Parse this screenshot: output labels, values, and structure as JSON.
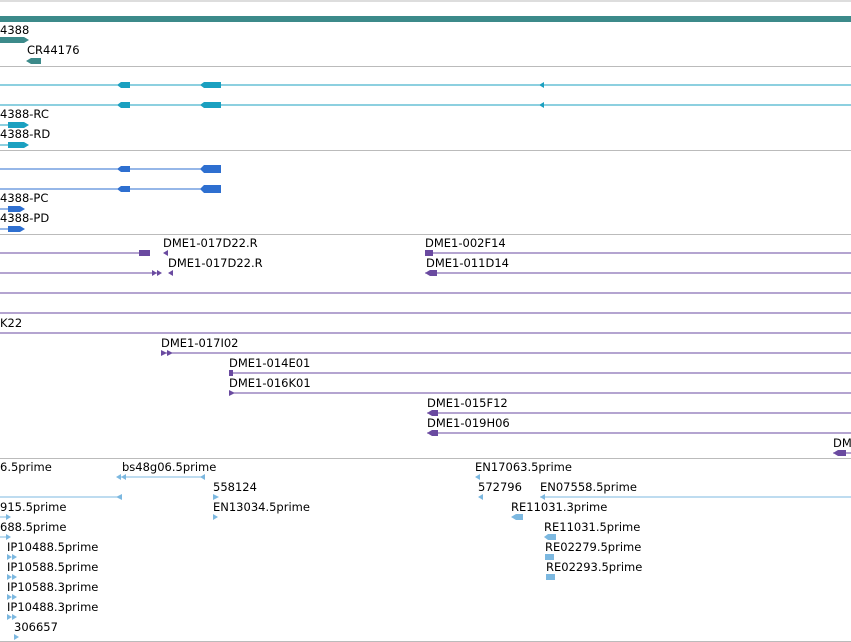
{
  "colors": {
    "gene": "#3c8a8a",
    "mrna": "#1ba0c0",
    "cds": "#2e6fd0",
    "clone": "#6a4aa0",
    "est": "#7cb8e0",
    "separator": "#bbbbbb"
  },
  "tracks": {
    "gene": {
      "features": [
        {
          "label": "4388"
        },
        {
          "label": "CR44176"
        }
      ]
    },
    "transcripts": {
      "features": [
        {
          "label": "4388-RC"
        },
        {
          "label": "4388-RD"
        }
      ]
    },
    "proteins": {
      "features": [
        {
          "label": "4388-PC"
        },
        {
          "label": "4388-PD"
        }
      ]
    },
    "clones_a": {
      "features": [
        {
          "label": "DME1-017D22.R"
        },
        {
          "label": "DME1-017D22.R"
        },
        {
          "label": "DME1-002F14"
        },
        {
          "label": "DME1-011D14"
        }
      ]
    },
    "clones_b": {
      "features": [
        {
          "label": "K22"
        },
        {
          "label": "DME1-017I02"
        },
        {
          "label": "DME1-014E01"
        },
        {
          "label": "DME1-016K01"
        },
        {
          "label": "DME1-015F12"
        },
        {
          "label": "DME1-019H06"
        },
        {
          "label": "DM"
        }
      ]
    },
    "ests": {
      "features": [
        {
          "label": "6.5prime"
        },
        {
          "label": "bs48g06.5prime"
        },
        {
          "label": "EN17063.5prime"
        },
        {
          "label": "558124"
        },
        {
          "label": "572796"
        },
        {
          "label": "EN07558.5prime"
        },
        {
          "label": "915.5prime"
        },
        {
          "label": "EN13034.5prime"
        },
        {
          "label": "RE11031.3prime"
        },
        {
          "label": "688.5prime"
        },
        {
          "label": "RE11031.5prime"
        },
        {
          "label": "IP10488.5prime"
        },
        {
          "label": "RE02279.5prime"
        },
        {
          "label": "IP10588.5prime"
        },
        {
          "label": "RE02293.5prime"
        },
        {
          "label": "IP10588.3prime"
        },
        {
          "label": "IP10488.3prime"
        },
        {
          "label": "306657"
        }
      ]
    }
  }
}
